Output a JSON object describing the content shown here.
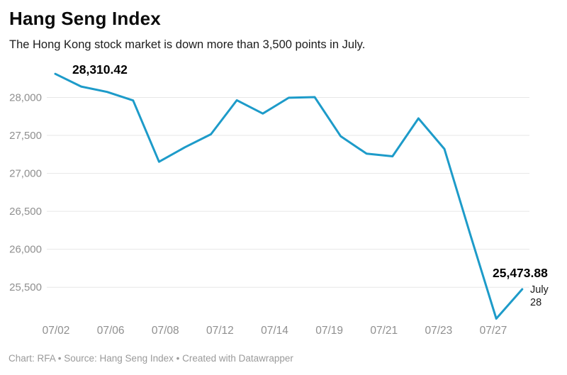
{
  "header": {
    "title": "Hang Seng Index",
    "subtitle": "The Hong Kong stock market is down more than 3,500 points in July."
  },
  "footer": {
    "text": "Chart: RFA • Source: Hang Seng Index • Created with Datawrapper"
  },
  "colors": {
    "line": "#1d9bc9",
    "grid": "#e7e7e7",
    "tick_text": "#8f8f8f",
    "annotation_text": "#000000",
    "date_label_text": "#1a1a1a"
  },
  "chart_data": {
    "type": "line",
    "title": "Hang Seng Index",
    "xlabel": "",
    "ylabel": "",
    "grid": "horizontal",
    "x": [
      "07/02",
      "07/05",
      "07/06",
      "07/07",
      "07/08",
      "07/09",
      "07/12",
      "07/13",
      "07/14",
      "07/15",
      "07/16",
      "07/19",
      "07/20",
      "07/21",
      "07/22",
      "07/23",
      "07/26",
      "07/27",
      "07/28"
    ],
    "values": [
      28310.42,
      28143.5,
      28072.86,
      27960.62,
      27153.13,
      27344.54,
      27515.24,
      27963.41,
      27787.46,
      27996.27,
      28004.68,
      27489.78,
      27259.25,
      27224.58,
      27723.84,
      27321.98,
      26192.32,
      25086.43,
      25473.88
    ],
    "x_tick_labels": [
      "07/02",
      "07/06",
      "07/08",
      "07/12",
      "07/14",
      "07/19",
      "07/21",
      "07/23",
      "07/27"
    ],
    "y_ticks": [
      28000,
      27500,
      27000,
      26500,
      26000,
      25500
    ],
    "y_tick_labels": [
      "28,000",
      "27,500",
      "27,000",
      "26,500",
      "26,000",
      "25,500"
    ],
    "ylim": [
      25035,
      28490
    ],
    "annotations": {
      "start_value": "28,310.42",
      "end_value": "25,473.88",
      "end_date_line1": "July",
      "end_date_line2": "28"
    }
  }
}
